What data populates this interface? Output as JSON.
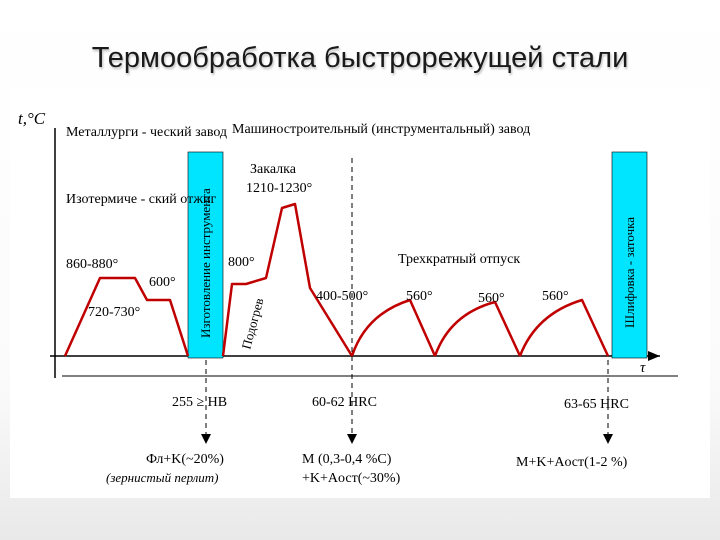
{
  "slide": {
    "title": "Термообработка быстрорежущей стали"
  },
  "diagram": {
    "y_axis_label": "t,°C",
    "x_axis_label": "τ",
    "section_metallurgical": "Металлурги - ческий завод",
    "section_machine": "Машиностроительный (инструментальный) завод",
    "band_manufacture": "Изготовление инструмента",
    "band_grinding": "Шлифовка - заточка",
    "stage_anneal": "Изотермиче - ский отжиг",
    "stage_hardening": "Закалка",
    "stage_hardening_temp": "1210-1230°",
    "stage_preheat": "Подогрев",
    "stage_preheat_temp": "800°",
    "stage_tempering": "Трехкратный отпуск",
    "temp_860": "860-880°",
    "temp_600": "600°",
    "temp_720": "720-730°",
    "temp_400": "400-500°",
    "temp_560_a": "560°",
    "temp_560_b": "560°",
    "temp_560_c": "560°",
    "hardness_annealed": "255 ≥ HB",
    "hardness_hardened": "60-62 HRC",
    "hardness_final": "63-65 HRC",
    "struct_annealed_1": "Фл+K(~20%)",
    "struct_annealed_2": "(зернистый перлит)",
    "struct_hardened_1": "M (0,3-0,4 %C)",
    "struct_hardened_2": "+K+Aост(~30%)",
    "struct_final": "M+K+Aост(1-2 %)",
    "curve_color": "#c00000",
    "band_color": "#00e5ff"
  }
}
